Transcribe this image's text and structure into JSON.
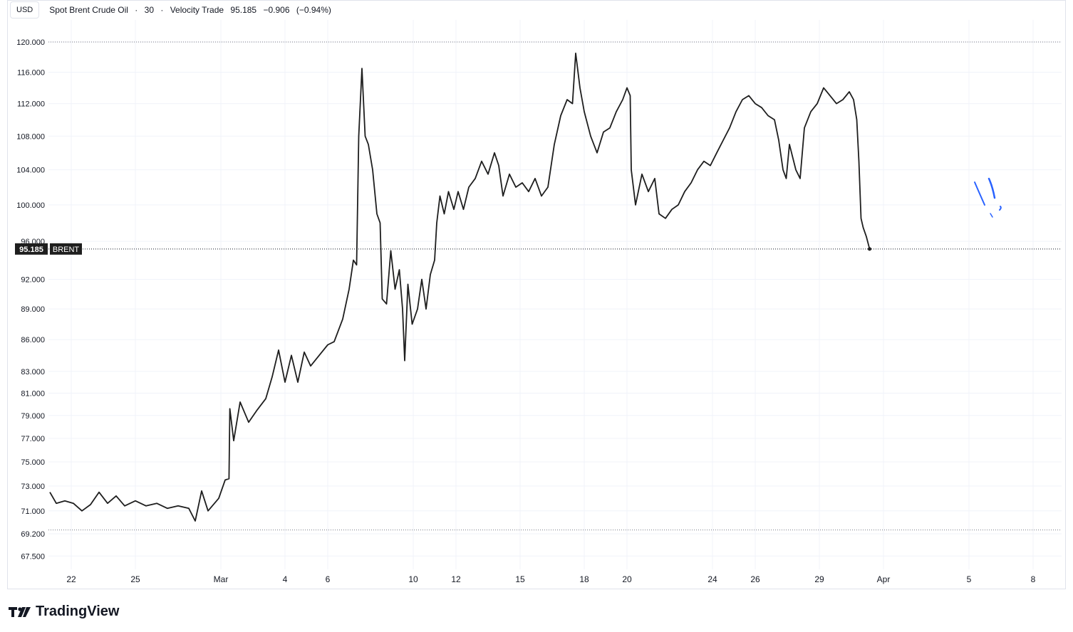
{
  "header": {
    "currency_label": "USD",
    "symbol": "Spot Brent Crude Oil",
    "sep1": "·",
    "interval": "30",
    "sep2": "·",
    "source": "Velocity Trade",
    "last": "95.185",
    "change": "−0.906",
    "change_pct": "(−0.94%)"
  },
  "brand": {
    "name": "TradingView"
  },
  "colors": {
    "line": "#1e1e1e",
    "grid": "#f0f3fa",
    "annotation": "#2962ff",
    "label_bg": "#1e1e1e"
  },
  "chart_data": {
    "type": "line",
    "title": "Spot Brent Crude Oil · 30 · Velocity Trade",
    "xlabel": "",
    "ylabel": "",
    "y_scale": "log",
    "ylim": [
      66.5,
      123
    ],
    "y_ticks": [
      "120.000",
      "116.000",
      "112.000",
      "108.000",
      "104.000",
      "100.000",
      "96.000",
      "92.000",
      "89.000",
      "86.000",
      "83.000",
      "81.000",
      "79.000",
      "77.000",
      "75.000",
      "73.000",
      "71.000",
      "69.200",
      "67.500"
    ],
    "x_ticks": [
      {
        "label": "22",
        "day": 2
      },
      {
        "label": "25",
        "day": 5
      },
      {
        "label": "Mar",
        "day": 9
      },
      {
        "label": "4",
        "day": 12
      },
      {
        "label": "6",
        "day": 14
      },
      {
        "label": "10",
        "day": 18
      },
      {
        "label": "12",
        "day": 20
      },
      {
        "label": "15",
        "day": 23
      },
      {
        "label": "18",
        "day": 26
      },
      {
        "label": "20",
        "day": 28
      },
      {
        "label": "24",
        "day": 32
      },
      {
        "label": "26",
        "day": 34
      },
      {
        "label": "29",
        "day": 37
      },
      {
        "label": "Apr",
        "day": 40
      },
      {
        "label": "5",
        "day": 44
      },
      {
        "label": "8",
        "day": 47
      }
    ],
    "xlim": [
      1.0,
      47.4
    ],
    "reference_lines": [
      120.0,
      69.5
    ],
    "price_label": {
      "value": "95.185",
      "symbol": "BRENT"
    },
    "series": [
      {
        "name": "BRENT",
        "points": [
          [
            1.0,
            72.5
          ],
          [
            1.3,
            71.6
          ],
          [
            1.7,
            71.8
          ],
          [
            2.1,
            71.6
          ],
          [
            2.5,
            71.0
          ],
          [
            2.9,
            71.5
          ],
          [
            3.3,
            72.5
          ],
          [
            3.7,
            71.6
          ],
          [
            4.1,
            72.2
          ],
          [
            4.5,
            71.4
          ],
          [
            5.0,
            71.8
          ],
          [
            5.5,
            71.4
          ],
          [
            6.0,
            71.6
          ],
          [
            6.5,
            71.2
          ],
          [
            7.0,
            71.4
          ],
          [
            7.5,
            71.2
          ],
          [
            7.8,
            70.2
          ],
          [
            8.1,
            72.6
          ],
          [
            8.4,
            71.0
          ],
          [
            8.9,
            72.0
          ],
          [
            9.2,
            73.5
          ],
          [
            9.38,
            73.6
          ],
          [
            9.42,
            79.6
          ],
          [
            9.6,
            76.8
          ],
          [
            9.9,
            80.2
          ],
          [
            10.3,
            78.4
          ],
          [
            10.7,
            79.5
          ],
          [
            11.1,
            80.5
          ],
          [
            11.4,
            82.5
          ],
          [
            11.7,
            85.0
          ],
          [
            12.0,
            82.0
          ],
          [
            12.3,
            84.5
          ],
          [
            12.6,
            82.0
          ],
          [
            12.9,
            84.8
          ],
          [
            13.2,
            83.5
          ],
          [
            13.6,
            84.5
          ],
          [
            14.0,
            85.5
          ],
          [
            14.3,
            85.8
          ],
          [
            14.7,
            88.0
          ],
          [
            15.0,
            91.0
          ],
          [
            15.2,
            94.0
          ],
          [
            15.35,
            93.5
          ],
          [
            15.45,
            108.0
          ],
          [
            15.6,
            116.5
          ],
          [
            15.75,
            108.0
          ],
          [
            15.9,
            107.0
          ],
          [
            16.1,
            104.0
          ],
          [
            16.3,
            99.0
          ],
          [
            16.45,
            98.0
          ],
          [
            16.55,
            90.0
          ],
          [
            16.75,
            89.5
          ],
          [
            16.95,
            95.0
          ],
          [
            17.15,
            91.0
          ],
          [
            17.35,
            93.0
          ],
          [
            17.5,
            89.0
          ],
          [
            17.6,
            84.0
          ],
          [
            17.75,
            91.5
          ],
          [
            17.95,
            87.5
          ],
          [
            18.2,
            89.0
          ],
          [
            18.4,
            92.0
          ],
          [
            18.6,
            89.0
          ],
          [
            18.8,
            92.5
          ],
          [
            19.0,
            94.0
          ],
          [
            19.1,
            98.0
          ],
          [
            19.25,
            101.0
          ],
          [
            19.45,
            99.0
          ],
          [
            19.65,
            101.5
          ],
          [
            19.9,
            99.5
          ],
          [
            20.1,
            101.5
          ],
          [
            20.35,
            99.5
          ],
          [
            20.6,
            102.0
          ],
          [
            20.9,
            103.0
          ],
          [
            21.2,
            105.0
          ],
          [
            21.5,
            103.5
          ],
          [
            21.8,
            106.0
          ],
          [
            22.0,
            104.5
          ],
          [
            22.2,
            101.0
          ],
          [
            22.5,
            103.5
          ],
          [
            22.8,
            102.0
          ],
          [
            23.1,
            102.5
          ],
          [
            23.4,
            101.5
          ],
          [
            23.7,
            103.0
          ],
          [
            24.0,
            101.0
          ],
          [
            24.3,
            102.0
          ],
          [
            24.6,
            107.0
          ],
          [
            24.9,
            110.5
          ],
          [
            25.2,
            112.5
          ],
          [
            25.45,
            112.0
          ],
          [
            25.6,
            118.5
          ],
          [
            25.8,
            114.0
          ],
          [
            26.0,
            111.0
          ],
          [
            26.3,
            108.0
          ],
          [
            26.6,
            106.0
          ],
          [
            26.9,
            108.5
          ],
          [
            27.2,
            109.0
          ],
          [
            27.5,
            111.0
          ],
          [
            27.8,
            112.5
          ],
          [
            28.0,
            114.0
          ],
          [
            28.15,
            113.0
          ],
          [
            28.2,
            104.0
          ],
          [
            28.4,
            100.0
          ],
          [
            28.7,
            103.5
          ],
          [
            29.0,
            101.5
          ],
          [
            29.3,
            103.0
          ],
          [
            29.5,
            99.0
          ],
          [
            29.8,
            98.5
          ],
          [
            30.1,
            99.5
          ],
          [
            30.4,
            100.0
          ],
          [
            30.7,
            101.5
          ],
          [
            31.0,
            102.5
          ],
          [
            31.3,
            104.0
          ],
          [
            31.6,
            105.0
          ],
          [
            31.9,
            104.5
          ],
          [
            32.2,
            106.0
          ],
          [
            32.5,
            107.5
          ],
          [
            32.8,
            109.0
          ],
          [
            33.1,
            111.0
          ],
          [
            33.4,
            112.5
          ],
          [
            33.7,
            113.0
          ],
          [
            34.0,
            112.0
          ],
          [
            34.3,
            111.5
          ],
          [
            34.6,
            110.5
          ],
          [
            34.9,
            110.0
          ],
          [
            35.1,
            107.5
          ],
          [
            35.3,
            104.0
          ],
          [
            35.45,
            103.0
          ],
          [
            35.6,
            107.0
          ],
          [
            35.9,
            104.0
          ],
          [
            36.1,
            103.0
          ],
          [
            36.3,
            109.0
          ],
          [
            36.6,
            111.0
          ],
          [
            36.9,
            112.0
          ],
          [
            37.2,
            114.0
          ],
          [
            37.5,
            113.0
          ],
          [
            37.8,
            112.0
          ],
          [
            38.1,
            112.5
          ],
          [
            38.4,
            113.5
          ],
          [
            38.6,
            112.5
          ],
          [
            38.75,
            110.0
          ],
          [
            38.85,
            105.0
          ],
          [
            38.95,
            98.5
          ],
          [
            39.05,
            97.5
          ],
          [
            39.2,
            96.5
          ],
          [
            39.35,
            95.185
          ]
        ]
      }
    ]
  }
}
